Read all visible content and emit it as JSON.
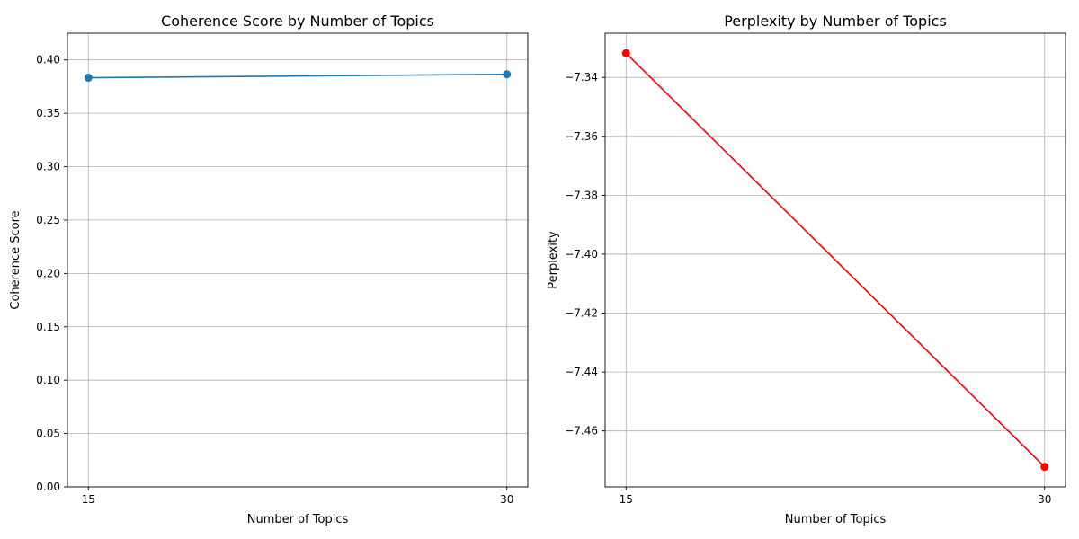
{
  "chart_data": [
    {
      "type": "line",
      "title": "Coherence Score by Number of Topics",
      "xlabel": "Number of Topics",
      "ylabel": "Coherence Score",
      "x": [
        15,
        30
      ],
      "xticks": [
        "15",
        "30"
      ],
      "yticks": [
        "0.00",
        "0.05",
        "0.10",
        "0.15",
        "0.20",
        "0.25",
        "0.30",
        "0.35",
        "0.40"
      ],
      "ylim": [
        0,
        0.425
      ],
      "xlim": [
        14.25,
        30.75
      ],
      "grid": true,
      "series": [
        {
          "values": [
            0.3833,
            0.3865
          ],
          "color": "#1f77b4",
          "marker": "circle"
        }
      ]
    },
    {
      "type": "line",
      "title": "Perplexity by Number of Topics",
      "xlabel": "Number of Topics",
      "ylabel": "Perplexity",
      "x": [
        15,
        30
      ],
      "xticks": [
        "15",
        "30"
      ],
      "yticks": [
        "−7.46",
        "−7.44",
        "−7.42",
        "−7.40",
        "−7.38",
        "−7.36",
        "−7.34"
      ],
      "ylim": [
        -7.479,
        -7.325
      ],
      "xlim": [
        14.25,
        30.75
      ],
      "grid": true,
      "series": [
        {
          "values": [
            -7.3318,
            -7.4722
          ],
          "color": "#ff0000",
          "marker": "circle"
        }
      ]
    }
  ]
}
